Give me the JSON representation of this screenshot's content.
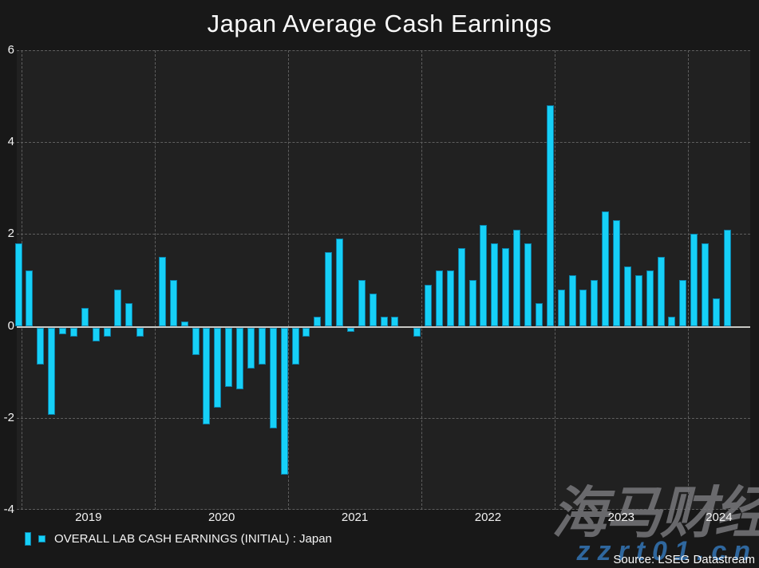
{
  "title": "Japan Average Cash Earnings",
  "legend": {
    "label": "OVERALL LAB CASH EARNINGS (INITIAL) : Japan"
  },
  "source": "Source: LSEG Datastream",
  "watermark": {
    "cn_text": "海马财经",
    "site_text": "zzrt01.cn"
  },
  "colors": {
    "background": "#181818",
    "plot_background": "#212121",
    "bar_fill": "#16d0f7",
    "bar_border": "#0c7ea6",
    "grid": "#5f5f5f",
    "zero_line": "#c8c8c4",
    "text": "#f2f2f2",
    "watermark_gray": "#7a7a7e",
    "watermark_blue": "#2f679e"
  },
  "chart_data": {
    "type": "bar",
    "title": "Japan Average Cash Earnings",
    "xlabel": "",
    "ylabel": "",
    "ylim": [
      -4,
      6
    ],
    "yticks": [
      6,
      4,
      2,
      0,
      -2,
      -4
    ],
    "grid": "dashed",
    "legend_position": "bottom-left",
    "series_name": "OVERALL LAB CASH EARNINGS (INITIAL) : Japan",
    "year_labels": [
      "2019",
      "2020",
      "2021",
      "2022",
      "2023",
      "2024"
    ],
    "x": [
      "2018-12",
      "2019-01",
      "2019-02",
      "2019-03",
      "2019-04",
      "2019-05",
      "2019-06",
      "2019-07",
      "2019-08",
      "2019-09",
      "2019-10",
      "2019-11",
      "2019-12",
      "2020-01",
      "2020-02",
      "2020-03",
      "2020-04",
      "2020-05",
      "2020-06",
      "2020-07",
      "2020-08",
      "2020-09",
      "2020-10",
      "2020-11",
      "2020-12",
      "2021-01",
      "2021-02",
      "2021-03",
      "2021-04",
      "2021-05",
      "2021-06",
      "2021-07",
      "2021-08",
      "2021-09",
      "2021-10",
      "2021-11",
      "2021-12",
      "2022-01",
      "2022-02",
      "2022-03",
      "2022-04",
      "2022-05",
      "2022-06",
      "2022-07",
      "2022-08",
      "2022-09",
      "2022-10",
      "2022-11",
      "2022-12",
      "2023-01",
      "2023-02",
      "2023-03",
      "2023-04",
      "2023-05",
      "2023-06",
      "2023-07",
      "2023-08",
      "2023-09",
      "2023-10",
      "2023-11",
      "2023-12",
      "2024-01",
      "2024-02",
      "2024-03",
      "2024-04"
    ],
    "values": [
      1.8,
      1.2,
      -0.8,
      -1.9,
      -0.15,
      -0.2,
      0.4,
      -0.3,
      -0.2,
      0.8,
      0.5,
      -0.2,
      0.0,
      1.5,
      1.0,
      0.1,
      -0.6,
      -2.1,
      -1.75,
      -1.3,
      -1.35,
      -0.9,
      -0.8,
      -2.2,
      -3.2,
      -0.8,
      -0.2,
      0.2,
      1.6,
      1.9,
      -0.1,
      1.0,
      0.7,
      0.2,
      0.2,
      0.0,
      -0.2,
      0.9,
      1.2,
      1.2,
      1.7,
      1.0,
      2.2,
      1.8,
      1.7,
      2.1,
      1.8,
      0.5,
      4.8,
      0.8,
      1.1,
      0.8,
      1.0,
      2.5,
      2.3,
      1.3,
      1.1,
      1.2,
      1.5,
      0.2,
      1.0,
      2.0,
      1.8,
      0.6,
      2.1
    ]
  }
}
